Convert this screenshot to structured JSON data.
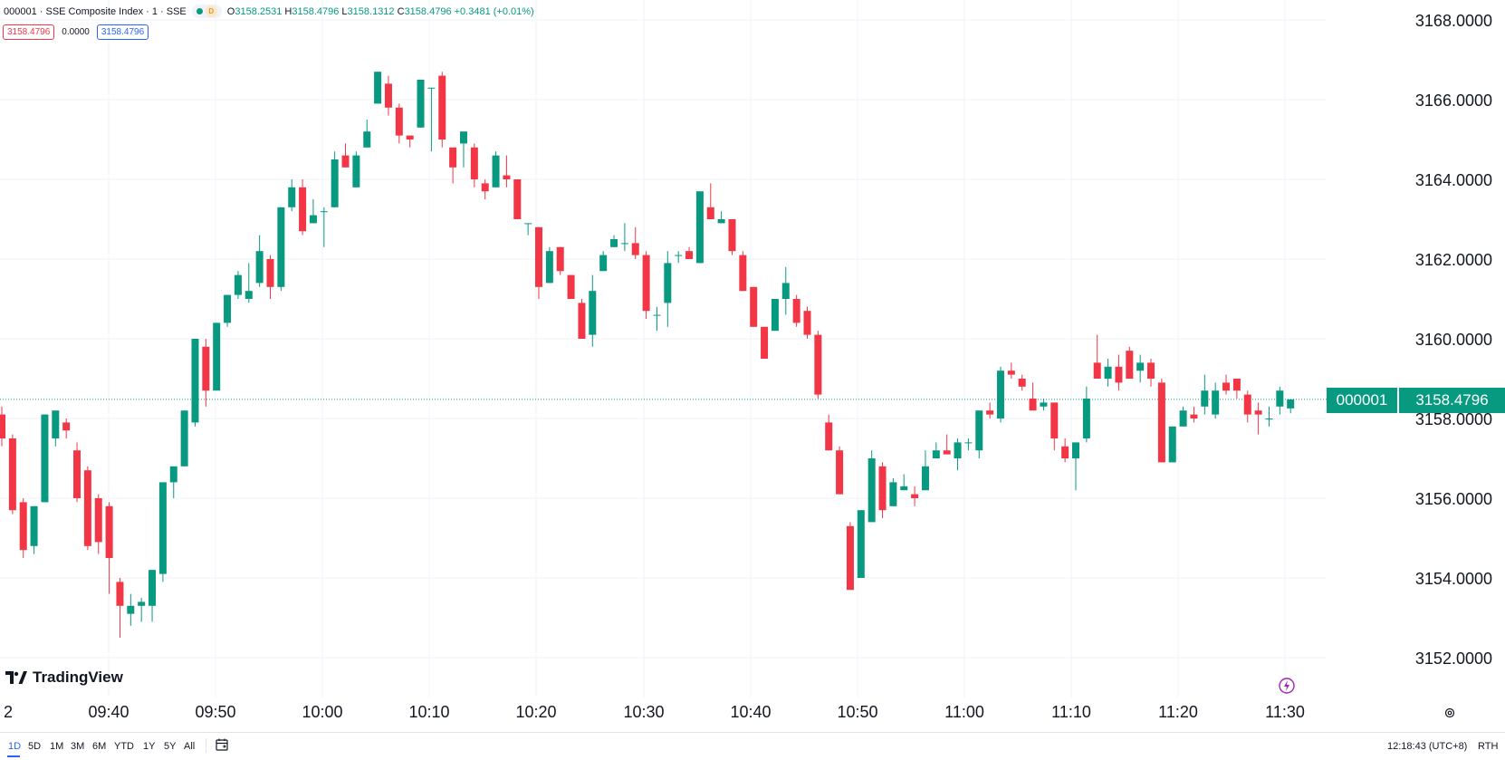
{
  "header": {
    "title": "000001 · SSE Composite Index · 1 · SSE",
    "status_letter": "D",
    "ohlc": {
      "o_label": "O",
      "o_value": "3158.2531",
      "h_label": "H",
      "h_value": "3158.4796",
      "l_label": "L",
      "l_value": "3158.1312",
      "c_label": "C",
      "c_value": "3158.4796",
      "change": "+0.3481 (+0.01%)"
    },
    "badges": {
      "bid": "3158.4796",
      "spread": "0.0000",
      "ask": "3158.4796"
    }
  },
  "logo": {
    "text": "TradingView"
  },
  "price_tag": {
    "symbol": "000001",
    "price": "3158.4796"
  },
  "bottom_bar": {
    "ranges": [
      "1D",
      "5D",
      "1M",
      "3M",
      "6M",
      "YTD",
      "1Y",
      "5Y",
      "All"
    ],
    "active_range": "1D",
    "clock": "12:18:43 (UTC+8)",
    "session": "RTH"
  },
  "colors": {
    "up": "#089981",
    "down": "#f23645",
    "grid": "#f0f3fa",
    "text": "#131722",
    "accent": "#2962ff"
  },
  "chart_data": {
    "type": "candlestick",
    "interval_minutes": 1,
    "x_tick_labels": [
      "2",
      "09:40",
      "09:50",
      "10:00",
      "10:10",
      "10:20",
      "10:30",
      "10:40",
      "10:50",
      "11:00",
      "11:10",
      "11:20",
      "11:30"
    ],
    "y_tick_labels": [
      "3152.0000",
      "3154.0000",
      "3156.0000",
      "3158.0000",
      "3160.0000",
      "3162.0000",
      "3164.0000",
      "3166.0000",
      "3168.0000"
    ],
    "ylim": [
      3151.2,
      3168.4
    ],
    "last_price": 3158.4796,
    "series": [
      {
        "time": "09:30",
        "ohlc": [
          3158.1,
          3158.3,
          3157.3,
          3157.5
        ]
      },
      {
        "time": "09:31",
        "ohlc": [
          3157.5,
          3157.6,
          3155.6,
          3155.7
        ]
      },
      {
        "time": "09:32",
        "ohlc": [
          3155.9,
          3156.0,
          3154.5,
          3154.7
        ]
      },
      {
        "time": "09:33",
        "ohlc": [
          3154.8,
          3155.8,
          3154.6,
          3155.8
        ]
      },
      {
        "time": "09:34",
        "ohlc": [
          3155.9,
          3158.1,
          3155.9,
          3158.1
        ]
      },
      {
        "time": "09:35",
        "ohlc": [
          3157.5,
          3158.2,
          3157.3,
          3158.2
        ]
      },
      {
        "time": "09:36",
        "ohlc": [
          3157.9,
          3158.0,
          3157.5,
          3157.7
        ]
      },
      {
        "time": "09:37",
        "ohlc": [
          3157.2,
          3157.4,
          3155.9,
          3156.0
        ]
      },
      {
        "time": "09:38",
        "ohlc": [
          3156.7,
          3156.8,
          3154.7,
          3154.8
        ]
      },
      {
        "time": "09:39",
        "ohlc": [
          3156.0,
          3156.1,
          3154.6,
          3154.9
        ]
      },
      {
        "time": "09:40",
        "ohlc": [
          3155.8,
          3155.9,
          3153.6,
          3154.5
        ]
      },
      {
        "time": "09:41",
        "ohlc": [
          3153.9,
          3154.0,
          3152.5,
          3153.3
        ]
      },
      {
        "time": "09:42",
        "ohlc": [
          3153.1,
          3153.6,
          3152.8,
          3153.3
        ]
      },
      {
        "time": "09:43",
        "ohlc": [
          3153.3,
          3153.5,
          3152.9,
          3153.4
        ]
      },
      {
        "time": "09:44",
        "ohlc": [
          3153.3,
          3154.2,
          3152.9,
          3154.2
        ]
      },
      {
        "time": "09:45",
        "ohlc": [
          3154.1,
          3156.4,
          3153.9,
          3156.4
        ]
      },
      {
        "time": "09:46",
        "ohlc": [
          3156.4,
          3156.8,
          3156.0,
          3156.8
        ]
      },
      {
        "time": "09:47",
        "ohlc": [
          3156.8,
          3158.2,
          3156.8,
          3158.2
        ]
      },
      {
        "time": "09:48",
        "ohlc": [
          3157.9,
          3160.0,
          3157.8,
          3160.0
        ]
      },
      {
        "time": "09:49",
        "ohlc": [
          3159.8,
          3160.0,
          3158.3,
          3158.7
        ]
      },
      {
        "time": "09:50",
        "ohlc": [
          3158.7,
          3160.4,
          3158.7,
          3160.4
        ]
      },
      {
        "time": "09:51",
        "ohlc": [
          3160.4,
          3161.1,
          3160.3,
          3161.1
        ]
      },
      {
        "time": "09:52",
        "ohlc": [
          3161.1,
          3161.7,
          3161.0,
          3161.6
        ]
      },
      {
        "time": "09:53",
        "ohlc": [
          3161.0,
          3161.9,
          3160.9,
          3161.2
        ]
      },
      {
        "time": "09:54",
        "ohlc": [
          3161.4,
          3162.6,
          3161.3,
          3162.2
        ]
      },
      {
        "time": "09:55",
        "ohlc": [
          3162.0,
          3162.1,
          3161.0,
          3161.3
        ]
      },
      {
        "time": "09:56",
        "ohlc": [
          3161.3,
          3163.3,
          3161.2,
          3163.3
        ]
      },
      {
        "time": "09:57",
        "ohlc": [
          3163.3,
          3164.0,
          3163.2,
          3163.8
        ]
      },
      {
        "time": "09:58",
        "ohlc": [
          3163.8,
          3164.0,
          3162.6,
          3162.7
        ]
      },
      {
        "time": "09:59",
        "ohlc": [
          3162.9,
          3163.5,
          3162.9,
          3163.1
        ]
      },
      {
        "time": "10:00",
        "ohlc": [
          3163.2,
          3163.3,
          3162.3,
          3163.2
        ]
      },
      {
        "time": "10:01",
        "ohlc": [
          3163.3,
          3164.7,
          3163.3,
          3164.5
        ]
      },
      {
        "time": "10:02",
        "ohlc": [
          3164.6,
          3164.9,
          3164.3,
          3164.3
        ]
      },
      {
        "time": "10:03",
        "ohlc": [
          3163.8,
          3164.7,
          3163.8,
          3164.6
        ]
      },
      {
        "time": "10:04",
        "ohlc": [
          3164.8,
          3165.5,
          3164.8,
          3165.2
        ]
      },
      {
        "time": "10:05",
        "ohlc": [
          3165.9,
          3166.7,
          3165.9,
          3166.7
        ]
      },
      {
        "time": "10:06",
        "ohlc": [
          3166.4,
          3166.6,
          3165.6,
          3165.8
        ]
      },
      {
        "time": "10:07",
        "ohlc": [
          3165.8,
          3165.9,
          3164.9,
          3165.1
        ]
      },
      {
        "time": "10:08",
        "ohlc": [
          3165.1,
          3165.1,
          3164.8,
          3165.0
        ]
      },
      {
        "time": "10:09",
        "ohlc": [
          3165.3,
          3166.5,
          3165.3,
          3166.5
        ]
      },
      {
        "time": "10:10",
        "ohlc": [
          3166.3,
          3166.3,
          3164.7,
          3166.3
        ]
      },
      {
        "time": "10:11",
        "ohlc": [
          3166.6,
          3166.7,
          3164.8,
          3165.0
        ]
      },
      {
        "time": "10:12",
        "ohlc": [
          3164.8,
          3164.8,
          3163.9,
          3164.3
        ]
      },
      {
        "time": "10:13",
        "ohlc": [
          3164.9,
          3165.2,
          3164.3,
          3165.2
        ]
      },
      {
        "time": "10:14",
        "ohlc": [
          3164.8,
          3164.9,
          3163.8,
          3164.0
        ]
      },
      {
        "time": "10:15",
        "ohlc": [
          3163.9,
          3164.0,
          3163.5,
          3163.7
        ]
      },
      {
        "time": "10:16",
        "ohlc": [
          3163.8,
          3164.7,
          3163.8,
          3164.6
        ]
      },
      {
        "time": "10:17",
        "ohlc": [
          3164.1,
          3164.6,
          3163.8,
          3164.0
        ]
      },
      {
        "time": "10:18",
        "ohlc": [
          3164.0,
          3164.0,
          3163.0,
          3163.0
        ]
      },
      {
        "time": "10:19",
        "ohlc": [
          3162.9,
          3162.9,
          3162.6,
          3162.9
        ]
      },
      {
        "time": "10:20",
        "ohlc": [
          3162.8,
          3162.8,
          3161.0,
          3161.3
        ]
      },
      {
        "time": "10:21",
        "ohlc": [
          3161.4,
          3162.3,
          3161.4,
          3162.2
        ]
      },
      {
        "time": "10:22",
        "ohlc": [
          3162.3,
          3162.3,
          3161.6,
          3161.7
        ]
      },
      {
        "time": "10:23",
        "ohlc": [
          3161.6,
          3161.6,
          3161.0,
          3161.0
        ]
      },
      {
        "time": "10:24",
        "ohlc": [
          3160.9,
          3161.0,
          3160.0,
          3160.0
        ]
      },
      {
        "time": "10:25",
        "ohlc": [
          3160.1,
          3161.6,
          3159.8,
          3161.2
        ]
      },
      {
        "time": "10:26",
        "ohlc": [
          3161.7,
          3162.2,
          3161.7,
          3162.1
        ]
      },
      {
        "time": "10:27",
        "ohlc": [
          3162.3,
          3162.6,
          3162.3,
          3162.5
        ]
      },
      {
        "time": "10:28",
        "ohlc": [
          3162.4,
          3162.9,
          3162.2,
          3162.4
        ]
      },
      {
        "time": "10:29",
        "ohlc": [
          3162.4,
          3162.8,
          3162.0,
          3162.1
        ]
      },
      {
        "time": "10:30",
        "ohlc": [
          3162.1,
          3162.2,
          3160.5,
          3160.7
        ]
      },
      {
        "time": "10:31",
        "ohlc": [
          3160.6,
          3160.8,
          3160.2,
          3160.6
        ]
      },
      {
        "time": "10:32",
        "ohlc": [
          3160.9,
          3162.2,
          3160.3,
          3161.9
        ]
      },
      {
        "time": "10:33",
        "ohlc": [
          3162.1,
          3162.2,
          3161.9,
          3162.1
        ]
      },
      {
        "time": "10:34",
        "ohlc": [
          3162.2,
          3162.3,
          3162.0,
          3162.0
        ]
      },
      {
        "time": "10:35",
        "ohlc": [
          3161.9,
          3163.7,
          3161.9,
          3163.7
        ]
      },
      {
        "time": "10:36",
        "ohlc": [
          3163.3,
          3163.9,
          3163.3,
          3163.0
        ]
      },
      {
        "time": "10:37",
        "ohlc": [
          3162.9,
          3163.2,
          3162.9,
          3163.0
        ]
      },
      {
        "time": "10:38",
        "ohlc": [
          3163.0,
          3163.0,
          3162.1,
          3162.2
        ]
      },
      {
        "time": "10:39",
        "ohlc": [
          3162.1,
          3162.2,
          3161.2,
          3161.2
        ]
      },
      {
        "time": "10:40",
        "ohlc": [
          3161.3,
          3161.3,
          3160.3,
          3160.3
        ]
      },
      {
        "time": "10:41",
        "ohlc": [
          3160.3,
          3160.3,
          3159.5,
          3159.5
        ]
      },
      {
        "time": "10:42",
        "ohlc": [
          3160.2,
          3161.0,
          3160.2,
          3161.0
        ]
      },
      {
        "time": "10:43",
        "ohlc": [
          3161.0,
          3161.8,
          3160.6,
          3161.4
        ]
      },
      {
        "time": "10:44",
        "ohlc": [
          3161.0,
          3161.1,
          3160.3,
          3160.4
        ]
      },
      {
        "time": "10:45",
        "ohlc": [
          3160.7,
          3160.8,
          3160.0,
          3160.1
        ]
      },
      {
        "time": "10:46",
        "ohlc": [
          3160.1,
          3160.2,
          3158.5,
          3158.6
        ]
      },
      {
        "time": "10:47",
        "ohlc": [
          3157.9,
          3158.1,
          3157.2,
          3157.2
        ]
      },
      {
        "time": "10:48",
        "ohlc": [
          3157.2,
          3157.3,
          3156.1,
          3156.1
        ]
      },
      {
        "time": "10:49",
        "ohlc": [
          3155.3,
          3155.4,
          3153.7,
          3153.7
        ]
      },
      {
        "time": "10:50",
        "ohlc": [
          3154.0,
          3155.7,
          3154.0,
          3155.7
        ]
      },
      {
        "time": "10:51",
        "ohlc": [
          3155.4,
          3157.2,
          3155.4,
          3157.0
        ]
      },
      {
        "time": "10:52",
        "ohlc": [
          3156.8,
          3156.9,
          3155.5,
          3155.7
        ]
      },
      {
        "time": "10:53",
        "ohlc": [
          3155.8,
          3156.5,
          3155.8,
          3156.4
        ]
      },
      {
        "time": "10:54",
        "ohlc": [
          3156.2,
          3156.6,
          3156.2,
          3156.3
        ]
      },
      {
        "time": "10:55",
        "ohlc": [
          3156.1,
          3156.3,
          3155.8,
          3156.0
        ]
      },
      {
        "time": "10:56",
        "ohlc": [
          3156.2,
          3157.2,
          3156.2,
          3156.8
        ]
      },
      {
        "time": "10:57",
        "ohlc": [
          3157.0,
          3157.4,
          3157.0,
          3157.2
        ]
      },
      {
        "time": "10:58",
        "ohlc": [
          3157.2,
          3157.6,
          3157.1,
          3157.1
        ]
      },
      {
        "time": "10:59",
        "ohlc": [
          3157.0,
          3157.5,
          3156.7,
          3157.4
        ]
      },
      {
        "time": "11:00",
        "ohlc": [
          3157.4,
          3157.5,
          3157.2,
          3157.4
        ]
      },
      {
        "time": "11:01",
        "ohlc": [
          3157.2,
          3158.2,
          3157.0,
          3158.2
        ]
      },
      {
        "time": "11:02",
        "ohlc": [
          3158.2,
          3158.4,
          3158.0,
          3158.1
        ]
      },
      {
        "time": "11:03",
        "ohlc": [
          3158.0,
          3159.3,
          3157.9,
          3159.2
        ]
      },
      {
        "time": "11:04",
        "ohlc": [
          3159.2,
          3159.4,
          3159.0,
          3159.1
        ]
      },
      {
        "time": "11:05",
        "ohlc": [
          3159.0,
          3159.1,
          3158.7,
          3158.8
        ]
      },
      {
        "time": "11:06",
        "ohlc": [
          3158.5,
          3158.9,
          3158.5,
          3158.2
        ]
      },
      {
        "time": "11:07",
        "ohlc": [
          3158.3,
          3158.5,
          3158.2,
          3158.4
        ]
      },
      {
        "time": "11:08",
        "ohlc": [
          3158.4,
          3158.4,
          3157.2,
          3157.5
        ]
      },
      {
        "time": "11:09",
        "ohlc": [
          3157.3,
          3157.5,
          3156.9,
          3157.0
        ]
      },
      {
        "time": "11:10",
        "ohlc": [
          3157.0,
          3157.4,
          3156.2,
          3157.4
        ]
      },
      {
        "time": "11:11",
        "ohlc": [
          3157.5,
          3158.8,
          3157.4,
          3158.5
        ]
      },
      {
        "time": "11:12",
        "ohlc": [
          3159.4,
          3160.1,
          3159.1,
          3159.0
        ]
      },
      {
        "time": "11:13",
        "ohlc": [
          3159.0,
          3159.5,
          3158.8,
          3159.3
        ]
      },
      {
        "time": "11:14",
        "ohlc": [
          3159.3,
          3159.6,
          3158.7,
          3158.9
        ]
      },
      {
        "time": "11:15",
        "ohlc": [
          3159.7,
          3159.8,
          3159.0,
          3159.0
        ]
      },
      {
        "time": "11:16",
        "ohlc": [
          3159.2,
          3159.6,
          3158.9,
          3159.4
        ]
      },
      {
        "time": "11:17",
        "ohlc": [
          3159.4,
          3159.5,
          3158.8,
          3159.0
        ]
      },
      {
        "time": "11:18",
        "ohlc": [
          3158.9,
          3159.0,
          3156.9,
          3156.9
        ]
      },
      {
        "time": "11:19",
        "ohlc": [
          3156.9,
          3157.8,
          3156.9,
          3157.8
        ]
      },
      {
        "time": "11:20",
        "ohlc": [
          3157.8,
          3158.3,
          3157.8,
          3158.2
        ]
      },
      {
        "time": "11:21",
        "ohlc": [
          3158.1,
          3158.3,
          3157.9,
          3158.0
        ]
      },
      {
        "time": "11:22",
        "ohlc": [
          3158.3,
          3159.1,
          3158.1,
          3158.7
        ]
      },
      {
        "time": "11:23",
        "ohlc": [
          3158.1,
          3158.9,
          3158.0,
          3158.7
        ]
      },
      {
        "time": "11:24",
        "ohlc": [
          3158.9,
          3159.1,
          3158.6,
          3158.7
        ]
      },
      {
        "time": "11:25",
        "ohlc": [
          3159.0,
          3159.0,
          3158.5,
          3158.7
        ]
      },
      {
        "time": "11:26",
        "ohlc": [
          3158.6,
          3158.7,
          3157.9,
          3158.1
        ]
      },
      {
        "time": "11:27",
        "ohlc": [
          3158.2,
          3158.4,
          3157.6,
          3158.1
        ]
      },
      {
        "time": "11:28",
        "ohlc": [
          3158.0,
          3158.3,
          3157.8,
          3158.0
        ]
      },
      {
        "time": "11:29",
        "ohlc": [
          3158.3,
          3158.8,
          3158.1,
          3158.7
        ]
      },
      {
        "time": "11:30",
        "ohlc": [
          3158.2531,
          3158.4796,
          3158.1312,
          3158.4796
        ]
      }
    ]
  }
}
